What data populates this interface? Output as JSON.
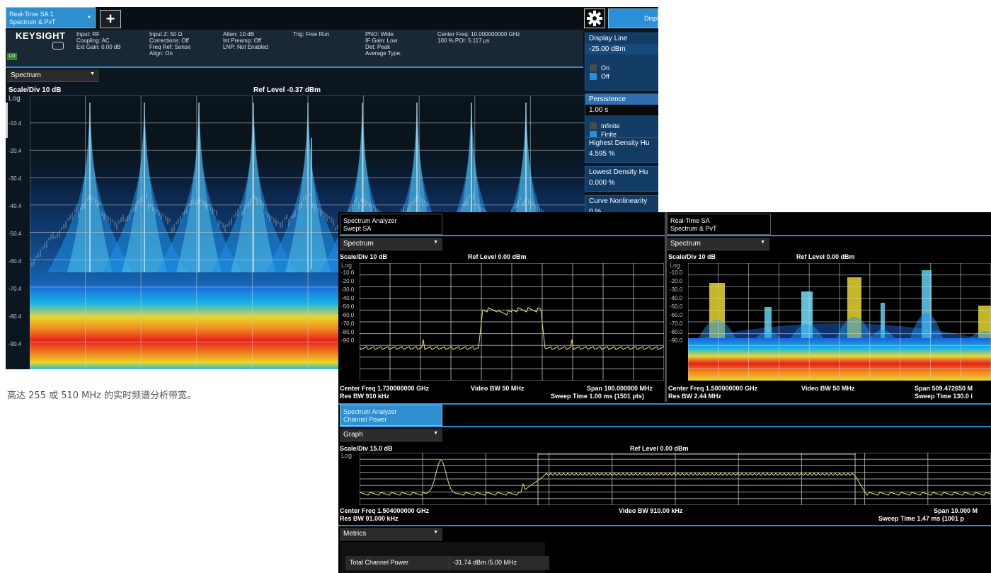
{
  "brand": "KEYSIGHT",
  "caption": "高达 255 或 510 MHz 的实时频谱分析带宽。",
  "main": {
    "tab": {
      "line1": "Real-Time SA 1",
      "line2": "Spectrum & PvT"
    },
    "add_label": "+",
    "lxi": "LXI",
    "info_cols": [
      [
        "Input: RF",
        "Coupling: AC",
        "Ext Gain: 0.00 dB"
      ],
      [
        "Input Z: 50 Ω",
        "Corrections: Off",
        "Freq Ref: Sense",
        "Align: On"
      ],
      [
        "Atten: 10 dB",
        "Int Preamp: Off",
        "LNP: Not Enabled"
      ],
      [
        "Trig: Free Run"
      ],
      [
        "PNO: Wide",
        "IF Gain: Low",
        "Det: Peak",
        "Average Type:"
      ],
      [
        "Center Freq: 10.000000000 GHz",
        "100 % POI: 5.117 µs"
      ]
    ],
    "view": "Spectrum",
    "scale": "Scale/Div 10 dB",
    "ref": "Ref Level -0.37 dBm",
    "log": "Log",
    "yticks": [
      "-10.4",
      "-20.4",
      "-30.4",
      "-40.4",
      "-50.4",
      "-60.4",
      "-70.4",
      "-80.4",
      "-90.4"
    ],
    "side": {
      "tab": "Displ",
      "display_line": "Display Line",
      "display_line_val": "-25.00 dBm",
      "on": "On",
      "off": "Off",
      "persistence": "Persistence",
      "persistence_val": "1.00 s",
      "infinite": "Infinite",
      "finite": "Finite",
      "highest": "Highest Density Hu",
      "highest_val": "4.595 %",
      "lowest": "Lowest Density Hu",
      "lowest_val": "0.000 %",
      "curve": "Curve Nonlinearity",
      "curve_val": "0 %"
    }
  },
  "swept": {
    "tab": {
      "line1": "Spectrum Analyzer",
      "line2": "Swept SA"
    },
    "view": "Spectrum",
    "scale": "Scale/Div 10 dB",
    "ref": "Ref Level 0.00 dBm",
    "log": "Log",
    "yticks": [
      "-10.0",
      "-20.0",
      "-30.0",
      "-40.0",
      "-50.0",
      "-60.0",
      "-70.0",
      "-80.0",
      "-90.0"
    ],
    "center": "Center Freq 1.730000000 GHz",
    "video": "Video BW 50 MHz",
    "span": "Span 100.000000 MHz",
    "rbw": "Res BW 910 kHz",
    "sweep": "Sweep Time 1.00 ms (1501 pts)"
  },
  "rt": {
    "tab": {
      "line1": "Real-Time SA",
      "line2": "Spectrum & PvT"
    },
    "view": "Spectrum",
    "scale": "Scale/Div 10 dB",
    "ref": "Ref Level 0.00 dBm",
    "log": "Log",
    "yticks": [
      "-10.0",
      "-20.0",
      "-30.0",
      "-40.0",
      "-50.0",
      "-60.0",
      "-70.0",
      "-80.0",
      "-90.0"
    ],
    "center": "Center Freq 1.500000000 GHz",
    "video": "Video BW 50 MHz",
    "span": "Span 509.472650 M",
    "rbw": "Res BW 2.44 MHz",
    "sweep": "Sweep Time 130.0 i"
  },
  "chp": {
    "tab": {
      "line1": "Spectrum Analyzer",
      "line2": "Channel Power"
    },
    "view": "Graph",
    "scale": "Scale/Div 15.0 dB",
    "ref": "Ref Level 0.00 dBm",
    "log": "Log",
    "center": "Center Freq 1.504000000 GHz",
    "video": "Video BW 910.00 kHz",
    "span": "Span 10.000 M",
    "rbw": "Res BW 91.000 kHz",
    "sweep": "Sweep Time 1.47 ms (1001 p",
    "metrics": "Metrics",
    "tcp_label": "Total Channel Power",
    "tcp_value": "-31.74 dBm /5.00 MHz"
  },
  "colors": {
    "accent": "#2a8fd6",
    "trace": "#e8e06a",
    "persistence_hot": "#e8201a",
    "persistence_cool": "#1b63d8"
  }
}
